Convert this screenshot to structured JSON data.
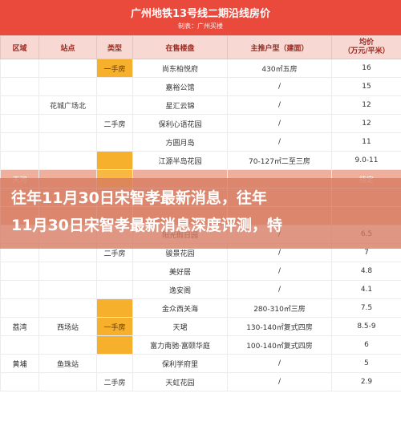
{
  "header": {
    "title": "广州地铁13号线二期沿线房价",
    "subtitle": "制表：广州买楼"
  },
  "columns": [
    "区域",
    "站点",
    "类型",
    "在售楼盘",
    "主推户型（建面）",
    "均价\n（万元/平米）"
  ],
  "rows": [
    {
      "area": "",
      "station": "",
      "type": "一手房",
      "type_new": true,
      "name": "尚东柏悦府",
      "unit": "430㎡五房",
      "price": "16"
    },
    {
      "area": "",
      "station": "",
      "type": "",
      "type_new": false,
      "name": "嘉裕公馆",
      "unit": "/",
      "price": "15"
    },
    {
      "area": "",
      "station": "花城广场北",
      "type": "",
      "type_new": false,
      "name": "星汇云锦",
      "unit": "/",
      "price": "12"
    },
    {
      "area": "",
      "station": "",
      "type": "二手房",
      "type_new": false,
      "name": "保利心语花园",
      "unit": "/",
      "price": "12"
    },
    {
      "area": "",
      "station": "",
      "type": "",
      "type_new": false,
      "name": "方圆月岛",
      "unit": "/",
      "price": "11"
    },
    {
      "area": "",
      "station": "",
      "type": "",
      "type_new": true,
      "name": "江源半岛花园",
      "unit": "70-127㎡二至三房",
      "price": "9.0-11"
    },
    {
      "area": "天河",
      "station": "",
      "type": "",
      "type_new": true,
      "name": "",
      "unit": "",
      "price": "待定",
      "hl": true
    },
    {
      "area": "",
      "station": "",
      "type": "",
      "type_new": false,
      "name": "",
      "unit": "",
      "price": "",
      "hl": true
    },
    {
      "area": "",
      "station": "",
      "type": "",
      "type_new": false,
      "name": "",
      "unit": "",
      "price": "",
      "hl": true
    },
    {
      "area": "",
      "station": "",
      "type": "",
      "type_new": false,
      "name": "阳光假日园",
      "unit": "/",
      "price": "6.5"
    },
    {
      "area": "",
      "station": "",
      "type": "二手房",
      "type_new": false,
      "name": "骏景花园",
      "unit": "/",
      "price": "7"
    },
    {
      "area": "",
      "station": "",
      "type": "",
      "type_new": false,
      "name": "美好居",
      "unit": "/",
      "price": "4.8"
    },
    {
      "area": "",
      "station": "",
      "type": "",
      "type_new": false,
      "name": "逸安阁",
      "unit": "/",
      "price": "4.1"
    },
    {
      "area": "",
      "station": "",
      "type": "",
      "type_new": true,
      "name": "金众西关海",
      "unit": "280-310㎡三房",
      "price": "7.5"
    },
    {
      "area": "荔湾",
      "station": "西场站",
      "type": "一手房",
      "type_new": true,
      "name": "天珺",
      "unit": "130-140㎡复式四房",
      "price": "8.5-9"
    },
    {
      "area": "",
      "station": "",
      "type": "",
      "type_new": true,
      "name": "富力南驰·富颐华庭",
      "unit": "100-140㎡复式四房",
      "price": "6"
    },
    {
      "area": "黄埔",
      "station": "鱼珠站",
      "type": "",
      "type_new": false,
      "name": "保利学府里",
      "unit": "/",
      "price": "5"
    },
    {
      "area": "",
      "station": "",
      "type": "二手房",
      "type_new": false,
      "name": "天虹花园",
      "unit": "/",
      "price": "2.9"
    }
  ],
  "overlay": {
    "line1": "往年11月30日宋智孝最新消息，往年",
    "line2": "11月30日宋智孝最新消息深度评测，特"
  }
}
